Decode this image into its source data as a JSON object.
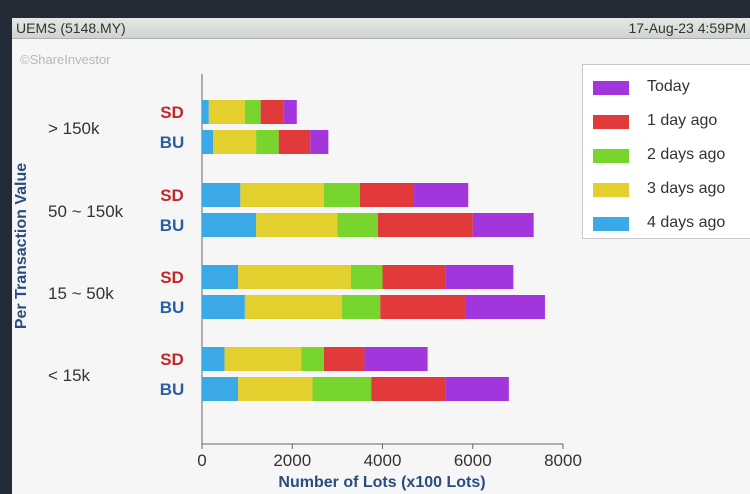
{
  "header": {
    "title": "UEMS (5148.MY)",
    "timestamp": "17-Aug-23 4:59PM"
  },
  "watermark": "©ShareInvestor",
  "chart_data": {
    "type": "bar",
    "orientation": "horizontal",
    "stacked": true,
    "ylabel": "Per Transaction Value",
    "xlabel": "Number of Lots (x100 Lots)",
    "xlim": [
      0,
      8000
    ],
    "xticks": [
      "0",
      "2000",
      "4000",
      "6000",
      "8000"
    ],
    "grid": false,
    "legend_position": "top-right",
    "categories": [
      {
        "label": "> 150k",
        "rows": [
          "SD",
          "BU"
        ]
      },
      {
        "label": "50 ~ 150k",
        "rows": [
          "SD",
          "BU"
        ]
      },
      {
        "label": "15 ~ 50k",
        "rows": [
          "SD",
          "BU"
        ]
      },
      {
        "label": "< 15k",
        "rows": [
          "SD",
          "BU"
        ]
      }
    ],
    "row_colors": {
      "SD": "#c0282c",
      "BU": "#2a5fa5"
    },
    "series": [
      {
        "name": "4 days ago",
        "color": "#3aa9e6",
        "values": [
          [
            150,
            250
          ],
          [
            850,
            1200
          ],
          [
            800,
            950
          ],
          [
            500,
            800
          ]
        ]
      },
      {
        "name": "3 days ago",
        "color": "#e3d02e",
        "values": [
          [
            800,
            950
          ],
          [
            1850,
            1800
          ],
          [
            2500,
            2150
          ],
          [
            1700,
            1650
          ]
        ]
      },
      {
        "name": "2 days ago",
        "color": "#77d52e",
        "values": [
          [
            350,
            500
          ],
          [
            800,
            900
          ],
          [
            700,
            850
          ],
          [
            500,
            1300
          ]
        ]
      },
      {
        "name": "1 day ago",
        "color": "#e23a3a",
        "values": [
          [
            500,
            700
          ],
          [
            1200,
            2100
          ],
          [
            1400,
            1900
          ],
          [
            900,
            1650
          ]
        ]
      },
      {
        "name": "Today",
        "color": "#a235dc",
        "values": [
          [
            300,
            400
          ],
          [
            1200,
            1350
          ],
          [
            1500,
            1750
          ],
          [
            1400,
            1400
          ]
        ]
      }
    ],
    "legend_order": [
      "Today",
      "1 day ago",
      "2 days ago",
      "3 days ago",
      "4 days ago"
    ]
  }
}
